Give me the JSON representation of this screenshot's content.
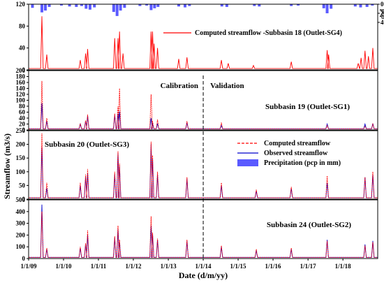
{
  "chart_data": {
    "type": "line",
    "xlabel": "Date (d/m/yy)",
    "ylabel": "Streamflow (m3/s)",
    "x_range": [
      "2009-01-01",
      "2018-12-31"
    ],
    "x_tick_labels": [
      "1/1/09",
      "1/1/10",
      "1/1/11",
      "1/1/12",
      "1/1/13",
      "1/1/14",
      "1/1/15",
      "1/1/16",
      "1/1/17",
      "1/1/18"
    ],
    "split_date": "2014-01-01",
    "period_labels": {
      "calibration": "Calibration",
      "validation": "Validation"
    },
    "colors": {
      "computed": "#ff0000",
      "observed": "#0000cc",
      "precipitation": "#5a5aff",
      "split_line": "#000000"
    },
    "precipitation": {
      "name": "pcp",
      "axis_label": "pcp",
      "inverted": true,
      "ylim": [
        0,
        40
      ],
      "tick_labels": [
        "0",
        "20",
        "40"
      ],
      "points": [
        [
          "2009-02-10",
          8
        ],
        [
          "2009-05-20",
          18
        ],
        [
          "2009-06-25",
          14
        ],
        [
          "2009-08-05",
          6
        ],
        [
          "2009-12-10",
          3
        ],
        [
          "2010-03-05",
          5
        ],
        [
          "2010-05-15",
          6
        ],
        [
          "2010-07-10",
          4
        ],
        [
          "2010-08-25",
          10
        ],
        [
          "2010-10-05",
          12
        ],
        [
          "2010-11-20",
          7
        ],
        [
          "2011-06-10",
          17
        ],
        [
          "2011-07-15",
          26
        ],
        [
          "2011-08-20",
          14
        ],
        [
          "2011-10-01",
          8
        ],
        [
          "2012-03-10",
          4
        ],
        [
          "2012-05-20",
          3
        ],
        [
          "2012-07-05",
          13
        ],
        [
          "2012-08-10",
          9
        ],
        [
          "2012-09-15",
          6
        ],
        [
          "2013-04-20",
          5
        ],
        [
          "2013-06-25",
          7
        ],
        [
          "2013-08-10",
          4
        ],
        [
          "2014-07-15",
          5
        ],
        [
          "2014-09-05",
          6
        ],
        [
          "2015-06-20",
          4
        ],
        [
          "2015-08-10",
          5
        ],
        [
          "2016-07-10",
          4
        ],
        [
          "2016-09-20",
          3
        ],
        [
          "2017-06-15",
          9
        ],
        [
          "2017-07-20",
          20
        ],
        [
          "2017-08-30",
          10
        ],
        [
          "2018-05-10",
          5
        ],
        [
          "2018-07-05",
          7
        ],
        [
          "2018-09-10",
          6
        ],
        [
          "2018-11-05",
          3
        ]
      ]
    },
    "panels": [
      {
        "id": "subbasin-18",
        "title": "",
        "ylim": [
          0,
          120
        ],
        "y_tick_labels": [
          "0",
          "40",
          "80",
          "120"
        ],
        "legend": "Computed streamflow -Subbasin 18 (Outlet-SG4)",
        "series": [
          {
            "name": "Computed streamflow -Subbasin 18 (Outlet-SG4)",
            "color": "#ff0000",
            "style": "solid",
            "peaks": [
              [
                "2009-05-20",
                98
              ],
              [
                "2009-07-10",
                28
              ],
              [
                "2010-06-25",
                18
              ],
              [
                "2010-08-20",
                30
              ],
              [
                "2010-09-10",
                38
              ],
              [
                "2011-06-20",
                58
              ],
              [
                "2011-07-25",
                58
              ],
              [
                "2011-08-10",
                70
              ],
              [
                "2011-09-15",
                30
              ],
              [
                "2012-07-05",
                70
              ],
              [
                "2012-07-20",
                70
              ],
              [
                "2012-08-05",
                48
              ],
              [
                "2012-09-10",
                40
              ],
              [
                "2013-04-20",
                20
              ],
              [
                "2013-07-15",
                23
              ],
              [
                "2014-07-10",
                18
              ],
              [
                "2014-09-20",
                12
              ],
              [
                "2015-06-10",
                8
              ],
              [
                "2016-07-10",
                15
              ],
              [
                "2017-07-20",
                36
              ],
              [
                "2017-08-05",
                28
              ],
              [
                "2018-06-10",
                12
              ],
              [
                "2018-07-10",
                22
              ],
              [
                "2018-08-20",
                35
              ],
              [
                "2018-09-25",
                25
              ],
              [
                "2018-11-10",
                40
              ]
            ]
          }
        ]
      },
      {
        "id": "subbasin-19",
        "title": "Subbasin 19 (Outlet-SG1)",
        "ylim": [
          0,
          200
        ],
        "y_tick_labels": [
          "0",
          "20",
          "40",
          "60",
          "80",
          "100",
          "120",
          "140",
          "160",
          "180",
          "200"
        ],
        "series": [
          {
            "name": "Observed streamflow",
            "color": "#0000cc",
            "style": "solid",
            "peaks": [
              [
                "2009-05-20",
                90
              ],
              [
                "2009-07-10",
                30
              ],
              [
                "2010-06-25",
                20
              ],
              [
                "2010-08-20",
                30
              ],
              [
                "2010-09-10",
                48
              ],
              [
                "2011-06-20",
                50
              ],
              [
                "2011-07-25",
                55
              ],
              [
                "2011-08-10",
                62
              ],
              [
                "2012-07-05",
                40
              ],
              [
                "2012-07-20",
                20
              ],
              [
                "2012-09-10",
                22
              ],
              [
                "2013-07-15",
                25
              ],
              [
                "2014-07-10",
                15
              ],
              [
                "2017-07-20",
                20
              ],
              [
                "2018-08-20",
                20
              ],
              [
                "2018-11-10",
                22
              ]
            ]
          },
          {
            "name": "Computed streamflow",
            "color": "#ff0000",
            "style": "dashed",
            "peaks": [
              [
                "2009-05-20",
                165
              ],
              [
                "2009-07-10",
                40
              ],
              [
                "2010-06-25",
                22
              ],
              [
                "2010-08-20",
                32
              ],
              [
                "2010-09-10",
                52
              ],
              [
                "2011-06-20",
                55
              ],
              [
                "2011-07-25",
                80
              ],
              [
                "2011-08-10",
                140
              ],
              [
                "2012-07-05",
                120
              ],
              [
                "2012-07-20",
                30
              ],
              [
                "2012-09-10",
                35
              ],
              [
                "2013-07-15",
                30
              ],
              [
                "2014-07-10",
                25
              ],
              [
                "2017-07-20",
                15
              ],
              [
                "2018-08-20",
                12
              ],
              [
                "2018-11-10",
                20
              ]
            ]
          }
        ]
      },
      {
        "id": "subbasin-20",
        "title": "Subbasin 20 (Outlet-SG3)",
        "ylim": [
          0,
          250
        ],
        "y_tick_labels": [
          "0",
          "50",
          "100",
          "150",
          "200",
          "250"
        ],
        "legend_entries": [
          "Computed streamflow",
          "Observed streamflow",
          "Precipitation (pcp in mm)"
        ],
        "series": [
          {
            "name": "Observed streamflow",
            "color": "#0000cc",
            "style": "solid",
            "peaks": [
              [
                "2009-05-20",
                190
              ],
              [
                "2009-07-10",
                40
              ],
              [
                "2010-06-25",
                50
              ],
              [
                "2010-08-20",
                80
              ],
              [
                "2010-09-10",
                95
              ],
              [
                "2011-06-20",
                90
              ],
              [
                "2011-07-25",
                170
              ],
              [
                "2011-08-10",
                120
              ],
              [
                "2012-07-05",
                200
              ],
              [
                "2012-07-20",
                150
              ],
              [
                "2012-09-10",
                90
              ],
              [
                "2013-07-15",
                75
              ],
              [
                "2014-07-10",
                50
              ],
              [
                "2015-07-10",
                30
              ],
              [
                "2016-07-10",
                40
              ],
              [
                "2017-07-20",
                60
              ],
              [
                "2018-08-20",
                80
              ],
              [
                "2018-11-10",
                90
              ]
            ]
          },
          {
            "name": "Computed streamflow",
            "color": "#ff0000",
            "style": "dashed",
            "peaks": [
              [
                "2009-05-20",
                240
              ],
              [
                "2009-07-10",
                60
              ],
              [
                "2010-06-25",
                60
              ],
              [
                "2010-08-20",
                90
              ],
              [
                "2010-09-10",
                110
              ],
              [
                "2011-06-20",
                100
              ],
              [
                "2011-07-25",
                175
              ],
              [
                "2011-08-10",
                130
              ],
              [
                "2012-07-05",
                210
              ],
              [
                "2012-07-20",
                160
              ],
              [
                "2012-09-10",
                100
              ],
              [
                "2013-07-15",
                80
              ],
              [
                "2014-07-10",
                60
              ],
              [
                "2015-07-10",
                35
              ],
              [
                "2016-07-10",
                45
              ],
              [
                "2017-07-20",
                85
              ],
              [
                "2018-08-20",
                80
              ],
              [
                "2018-11-10",
                100
              ]
            ]
          }
        ]
      },
      {
        "id": "subbasin-24",
        "title": "Subbasin 24 (Outlet-SG2)",
        "ylim": [
          0,
          500
        ],
        "y_tick_labels": [
          "0",
          "100",
          "200",
          "300",
          "400",
          "500"
        ],
        "series": [
          {
            "name": "Observed streamflow",
            "color": "#0000cc",
            "style": "solid",
            "peaks": [
              [
                "2009-05-20",
                460
              ],
              [
                "2009-07-10",
                80
              ],
              [
                "2010-06-25",
                90
              ],
              [
                "2010-08-20",
                120
              ],
              [
                "2010-09-10",
                200
              ],
              [
                "2011-06-20",
                180
              ],
              [
                "2011-07-25",
                250
              ],
              [
                "2011-08-10",
                140
              ],
              [
                "2012-07-05",
                280
              ],
              [
                "2012-07-20",
                210
              ],
              [
                "2012-09-10",
                160
              ],
              [
                "2013-07-15",
                150
              ],
              [
                "2014-07-10",
                100
              ],
              [
                "2015-07-10",
                70
              ],
              [
                "2016-07-10",
                80
              ],
              [
                "2017-07-20",
                160
              ],
              [
                "2018-08-20",
                120
              ],
              [
                "2018-11-10",
                150
              ]
            ]
          },
          {
            "name": "Computed streamflow",
            "color": "#ff0000",
            "style": "dashed",
            "peaks": [
              [
                "2009-05-20",
                400
              ],
              [
                "2009-07-10",
                90
              ],
              [
                "2010-06-25",
                100
              ],
              [
                "2010-08-20",
                130
              ],
              [
                "2010-09-10",
                240
              ],
              [
                "2011-06-20",
                190
              ],
              [
                "2011-07-25",
                280
              ],
              [
                "2011-08-10",
                160
              ],
              [
                "2012-07-05",
                360
              ],
              [
                "2012-07-20",
                220
              ],
              [
                "2012-09-10",
                170
              ],
              [
                "2013-07-15",
                160
              ],
              [
                "2014-07-10",
                110
              ],
              [
                "2015-07-10",
                80
              ],
              [
                "2016-07-10",
                90
              ],
              [
                "2017-07-20",
                150
              ],
              [
                "2018-08-20",
                110
              ],
              [
                "2018-11-10",
                140
              ]
            ]
          }
        ]
      }
    ]
  }
}
